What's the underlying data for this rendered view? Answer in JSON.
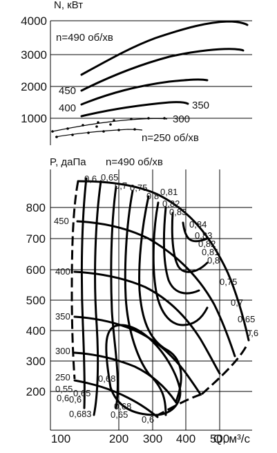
{
  "chart_data": [
    {
      "type": "line",
      "ylabel": "N, кВт",
      "y_ticks": [
        "4000",
        "3000",
        "2000",
        "1000"
      ],
      "ylim": [
        500,
        4000
      ],
      "xlim": [
        100,
        600
      ],
      "grid": true,
      "series": [
        {
          "name": "n=490 об/хв",
          "x": [
            195,
            280,
            380,
            460,
            530,
            580
          ],
          "y": [
            2600,
            3200,
            3650,
            3880,
            3920,
            3800
          ]
        },
        {
          "name": "450",
          "x": [
            195,
            260,
            350,
            450,
            520,
            565
          ],
          "y": [
            1900,
            2400,
            2850,
            3080,
            3150,
            3100
          ]
        },
        {
          "name": "400",
          "x": [
            195,
            260,
            350,
            420,
            460
          ],
          "y": [
            1450,
            1800,
            2100,
            2230,
            2200
          ]
        },
        {
          "name": "350",
          "x": [
            195,
            270,
            350,
            405,
            430
          ],
          "y": [
            1000,
            1250,
            1440,
            1480,
            1420
          ]
        },
        {
          "name": "300",
          "x": [
            110,
            200,
            290,
            360,
            390
          ],
          "y": [
            600,
            800,
            980,
            1020,
            1000
          ]
        },
        {
          "name": "n=250 об/хв",
          "x": [
            110,
            180,
            250,
            300,
            320
          ],
          "y": [
            300,
            420,
            520,
            570,
            560
          ]
        }
      ],
      "annotations": [
        "n=490 об/хв",
        "450",
        "400",
        "350",
        "300",
        "n=250 об/хв"
      ]
    },
    {
      "type": "line",
      "title": "n=490 об/хв",
      "ylabel": "P, даПа",
      "xlabel": "Q, м³/с",
      "x_ticks": [
        "100",
        "200",
        "300",
        "400",
        "500"
      ],
      "y_ticks": [
        "800",
        "700",
        "600",
        "500",
        "400",
        "300",
        "200"
      ],
      "xlim": [
        80,
        630
      ],
      "ylim": [
        95,
        920
      ],
      "grid": true,
      "speed_labels": [
        "450",
        "400",
        "350",
        "300",
        "250"
      ],
      "efficiency_labels_top": [
        "0,6",
        "0,65",
        "0,7",
        "0,75",
        "0,8",
        "0,81",
        "0,82",
        "0,83"
      ],
      "efficiency_labels_right": [
        "0,84",
        "0,83",
        "0,82",
        "0,81",
        "0,8",
        "0,75",
        "0,7",
        "0,65",
        "0,6"
      ],
      "efficiency_labels_bottom": [
        "0,68",
        "0,55",
        "0,6",
        "0,65",
        "0,6",
        "0,683",
        "0,68",
        "0,65",
        "0,6"
      ]
    }
  ]
}
